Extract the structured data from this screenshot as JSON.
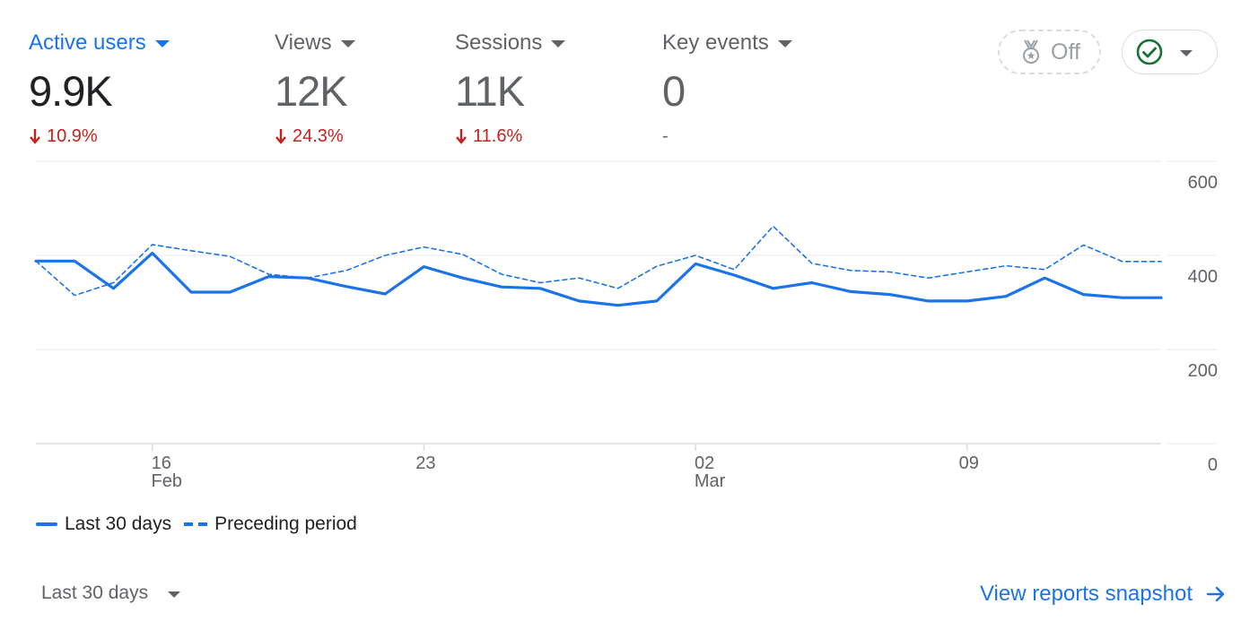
{
  "metrics": [
    {
      "label": "Active users",
      "value": "9.9K",
      "change": "10.9%",
      "direction": "down",
      "active": true
    },
    {
      "label": "Views",
      "value": "12K",
      "change": "24.3%",
      "direction": "down",
      "active": false
    },
    {
      "label": "Sessions",
      "value": "11K",
      "change": "11.6%",
      "direction": "down",
      "active": false
    },
    {
      "label": "Key events",
      "value": "0",
      "change": "-",
      "direction": "none",
      "active": false
    }
  ],
  "toggle": {
    "label": "Off",
    "icon": "medal-icon"
  },
  "status": {
    "icon": "check-circle-icon"
  },
  "colors": {
    "accent": "#1a73e8",
    "negative": "#c5221f",
    "status_ok": "#137333",
    "muted": "#5f6368"
  },
  "chart_data": {
    "type": "line",
    "title": "",
    "xlabel": "",
    "ylabel": "",
    "ylim": [
      0,
      600
    ],
    "y_ticks": [
      0,
      200,
      400,
      600
    ],
    "grid": true,
    "legend_position": "bottom-left",
    "x": [
      "Feb 13",
      "Feb 14",
      "Feb 15",
      "Feb 16",
      "Feb 17",
      "Feb 18",
      "Feb 19",
      "Feb 20",
      "Feb 21",
      "Feb 22",
      "Feb 23",
      "Feb 24",
      "Feb 25",
      "Feb 26",
      "Feb 27",
      "Feb 28",
      "Mar 01",
      "Mar 02",
      "Mar 03",
      "Mar 04",
      "Mar 05",
      "Mar 06",
      "Mar 07",
      "Mar 08",
      "Mar 09",
      "Mar 10",
      "Mar 11",
      "Mar 12",
      "Mar 13",
      "Mar 14"
    ],
    "x_ticks": [
      {
        "index": 3,
        "day": "16",
        "month": "Feb"
      },
      {
        "index": 10,
        "day": "23",
        "month": ""
      },
      {
        "index": 17,
        "day": "02",
        "month": "Mar"
      },
      {
        "index": 24,
        "day": "09",
        "month": ""
      }
    ],
    "series": [
      {
        "name": "Last 30 days",
        "style": "solid",
        "values": [
          388,
          388,
          330,
          405,
          322,
          322,
          355,
          352,
          334,
          318,
          376,
          352,
          333,
          330,
          303,
          294,
          303,
          382,
          358,
          330,
          342,
          323,
          317,
          303,
          303,
          313,
          352,
          317,
          310,
          310
        ]
      },
      {
        "name": "Preceding period",
        "style": "dashed",
        "values": [
          388,
          315,
          342,
          423,
          410,
          398,
          360,
          352,
          368,
          400,
          418,
          402,
          360,
          342,
          352,
          330,
          377,
          400,
          370,
          462,
          383,
          368,
          365,
          352,
          365,
          378,
          370,
          422,
          387,
          387
        ]
      }
    ]
  },
  "footer": {
    "range_label": "Last 30 days",
    "link_label": "View reports snapshot"
  }
}
